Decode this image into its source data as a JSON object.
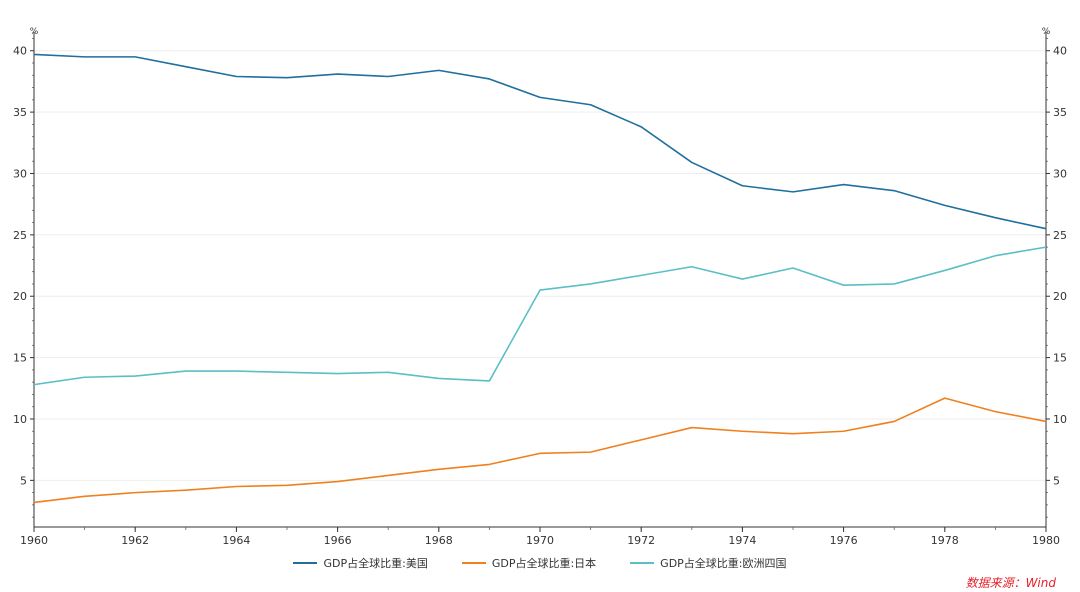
{
  "chart_data": {
    "type": "line",
    "x": [
      1960,
      1961,
      1962,
      1963,
      1964,
      1965,
      1966,
      1967,
      1968,
      1969,
      1970,
      1971,
      1972,
      1973,
      1974,
      1975,
      1976,
      1977,
      1978,
      1979,
      1980
    ],
    "x_ticks": [
      "1960",
      "1962",
      "1964",
      "1966",
      "1968",
      "1970",
      "1972",
      "1974",
      "1976",
      "1978",
      "1980"
    ],
    "y_ticks": [
      "5",
      "10",
      "15",
      "20",
      "25",
      "30",
      "35",
      "40"
    ],
    "ylim": [
      1.2,
      41.2
    ],
    "y_unit_left": "%",
    "y_unit_right": "%",
    "grid": true,
    "legend_position": "bottom",
    "series": [
      {
        "name": "GDP占全球比重:美国",
        "color": "#1f6f9f",
        "values": [
          39.7,
          39.5,
          39.5,
          38.7,
          37.9,
          37.8,
          38.1,
          37.9,
          38.4,
          37.7,
          36.2,
          35.6,
          33.8,
          30.9,
          29.0,
          28.5,
          29.1,
          28.6,
          27.4,
          26.4,
          25.5
        ]
      },
      {
        "name": "GDP占全球比重:日本",
        "color": "#f0801e",
        "values": [
          3.2,
          3.7,
          4.0,
          4.2,
          4.5,
          4.6,
          4.9,
          5.4,
          5.9,
          6.3,
          7.2,
          7.3,
          8.3,
          9.3,
          9.0,
          8.8,
          9.0,
          9.8,
          11.7,
          10.6,
          9.8
        ]
      },
      {
        "name": "GDP占全球比重:欧洲四国",
        "color": "#5bbfc6",
        "values": [
          12.8,
          13.4,
          13.5,
          13.9,
          13.9,
          13.8,
          13.7,
          13.8,
          13.3,
          13.1,
          20.5,
          21.0,
          21.7,
          22.4,
          21.4,
          22.3,
          20.9,
          21.0,
          22.1,
          23.3,
          24.0
        ]
      }
    ]
  },
  "source_note": "数据来源：Wind"
}
